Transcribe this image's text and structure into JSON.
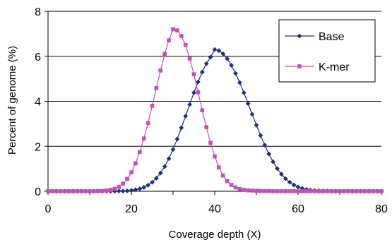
{
  "chart_data": {
    "type": "line",
    "title": "",
    "xlabel": "Coverage depth (X)",
    "ylabel": "Percent of genome (%)",
    "xlim": [
      0,
      80
    ],
    "ylim": [
      0,
      8
    ],
    "xticks": [
      0,
      20,
      40,
      60,
      80
    ],
    "yticks": [
      0,
      2,
      4,
      6,
      8
    ],
    "grid": "horizontal",
    "legend": "top-right",
    "series": [
      {
        "name": "Base",
        "color": "#1f2f7a",
        "marker": "diamond",
        "x": [
          0,
          1,
          2,
          3,
          4,
          5,
          6,
          7,
          8,
          9,
          10,
          11,
          12,
          13,
          14,
          15,
          16,
          17,
          18,
          19,
          20,
          21,
          22,
          23,
          24,
          25,
          26,
          27,
          28,
          29,
          30,
          31,
          32,
          33,
          34,
          35,
          36,
          37,
          38,
          39,
          40,
          41,
          42,
          43,
          44,
          45,
          46,
          47,
          48,
          49,
          50,
          51,
          52,
          53,
          54,
          55,
          56,
          57,
          58,
          59,
          60,
          61,
          62,
          63,
          64,
          65,
          66,
          67,
          68,
          69,
          70,
          71,
          72,
          73,
          74,
          75,
          76,
          77,
          78,
          79,
          80
        ],
        "y": [
          0,
          0,
          0,
          0,
          0,
          0,
          0,
          0,
          0,
          0,
          0,
          0,
          0,
          0,
          0,
          0,
          0,
          0.01,
          0.01,
          0.02,
          0.04,
          0.07,
          0.11,
          0.17,
          0.27,
          0.4,
          0.58,
          0.81,
          1.1,
          1.45,
          1.86,
          2.32,
          2.82,
          3.34,
          3.86,
          4.38,
          4.86,
          5.3,
          5.67,
          5.96,
          6.3,
          6.25,
          6.11,
          5.89,
          5.6,
          5.24,
          4.83,
          4.38,
          3.9,
          3.42,
          2.94,
          2.48,
          2.05,
          1.66,
          1.31,
          1.01,
          0.76,
          0.56,
          0.4,
          0.28,
          0.19,
          0.13,
          0.08,
          0.05,
          0.03,
          0.02,
          0.01,
          0.01,
          0,
          0,
          0,
          0,
          0,
          0,
          0,
          0,
          0,
          0,
          0,
          0,
          0
        ]
      },
      {
        "name": "K-mer",
        "color": "#c050b4",
        "marker": "square",
        "x": [
          0,
          1,
          2,
          3,
          4,
          5,
          6,
          7,
          8,
          9,
          10,
          11,
          12,
          13,
          14,
          15,
          16,
          17,
          18,
          19,
          20,
          21,
          22,
          23,
          24,
          25,
          26,
          27,
          28,
          29,
          30,
          31,
          32,
          33,
          34,
          35,
          36,
          37,
          38,
          39,
          40,
          41,
          42,
          43,
          44,
          45,
          46,
          47,
          48,
          49,
          50,
          51,
          52,
          53,
          54,
          55,
          56,
          57,
          58,
          59,
          60,
          61,
          62,
          63,
          64,
          65,
          66,
          67,
          68,
          69,
          70,
          71,
          72,
          73,
          74,
          75,
          76,
          77,
          78,
          79,
          80
        ],
        "y": [
          0,
          0,
          0,
          0,
          0,
          0,
          0,
          0,
          0,
          0,
          0,
          0,
          0.01,
          0.01,
          0.03,
          0.06,
          0.11,
          0.2,
          0.34,
          0.55,
          0.84,
          1.24,
          1.74,
          2.34,
          3.03,
          3.8,
          4.59,
          5.37,
          6.1,
          6.71,
          7.2,
          7.15,
          6.9,
          6.5,
          5.9,
          5.2,
          4.4,
          3.6,
          2.85,
          2.15,
          1.55,
          1.06,
          0.7,
          0.45,
          0.28,
          0.17,
          0.1,
          0.06,
          0.04,
          0.03,
          0.02,
          0.01,
          0.01,
          0.01,
          0,
          0,
          0,
          0,
          0,
          0,
          0,
          0,
          0,
          0,
          0,
          0,
          0,
          0,
          0,
          0,
          0,
          0,
          0,
          0,
          0,
          0,
          0,
          0,
          0,
          0,
          0
        ]
      }
    ]
  }
}
